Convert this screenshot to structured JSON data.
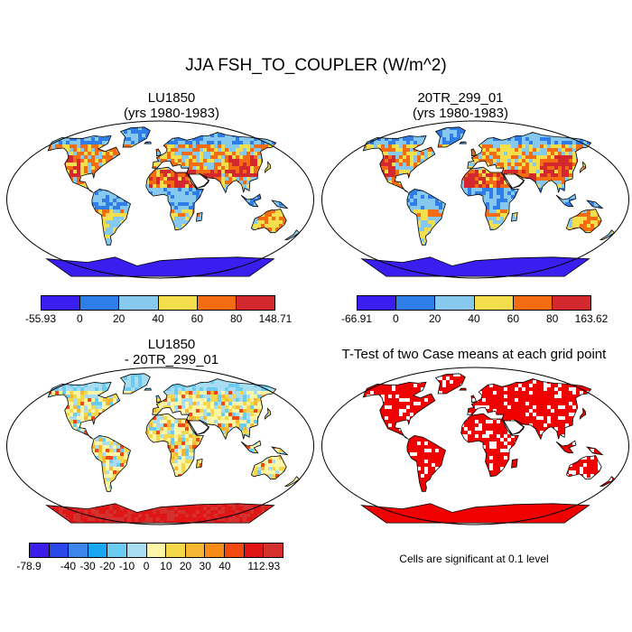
{
  "title": "JJA FSH_TO_COUPLER (W/m^2)",
  "panels": [
    {
      "title_lines": [
        "LU1850",
        "(yrs 1980-1983)"
      ],
      "colorbar": {
        "colors": [
          "#3a1ef0",
          "#2f7de6",
          "#86c8ee",
          "#f3df4c",
          "#f36b12",
          "#d3282d"
        ],
        "labels": [
          "-55.93",
          "0",
          "20",
          "40",
          "60",
          "80",
          "148.71"
        ]
      }
    },
    {
      "title_lines": [
        "20TR_299_01",
        "(yrs 1980-1983)"
      ],
      "colorbar": {
        "colors": [
          "#3a1ef0",
          "#2f7de6",
          "#86c8ee",
          "#f3df4c",
          "#f36b12",
          "#d3282d"
        ],
        "labels": [
          "-66.91",
          "0",
          "20",
          "40",
          "60",
          "80",
          "163.62"
        ]
      }
    },
    {
      "title_lines": [
        "LU1850",
        "- 20TR_299_01"
      ],
      "colorbar": {
        "colors": [
          "#3b1ee8",
          "#2c47e8",
          "#3a86ec",
          "#19a6f0",
          "#6ccbf1",
          "#a8dcf0",
          "#fdf6a6",
          "#f4d84a",
          "#f7b733",
          "#f88a17",
          "#f3480f",
          "#e01515",
          "#d4302e"
        ],
        "labels": [
          "-78.9",
          "",
          "-40",
          "-30",
          "-20",
          "-10",
          "0",
          "10",
          "20",
          "30",
          "40",
          "",
          "112.93"
        ]
      }
    },
    {
      "title_lines": [
        "T-Test of two Case means at each grid point"
      ],
      "note": "Cells are significant at 0.1 level"
    }
  ],
  "map_colors": {
    "outline": "#000000",
    "ttest_fill": "#f00000"
  }
}
